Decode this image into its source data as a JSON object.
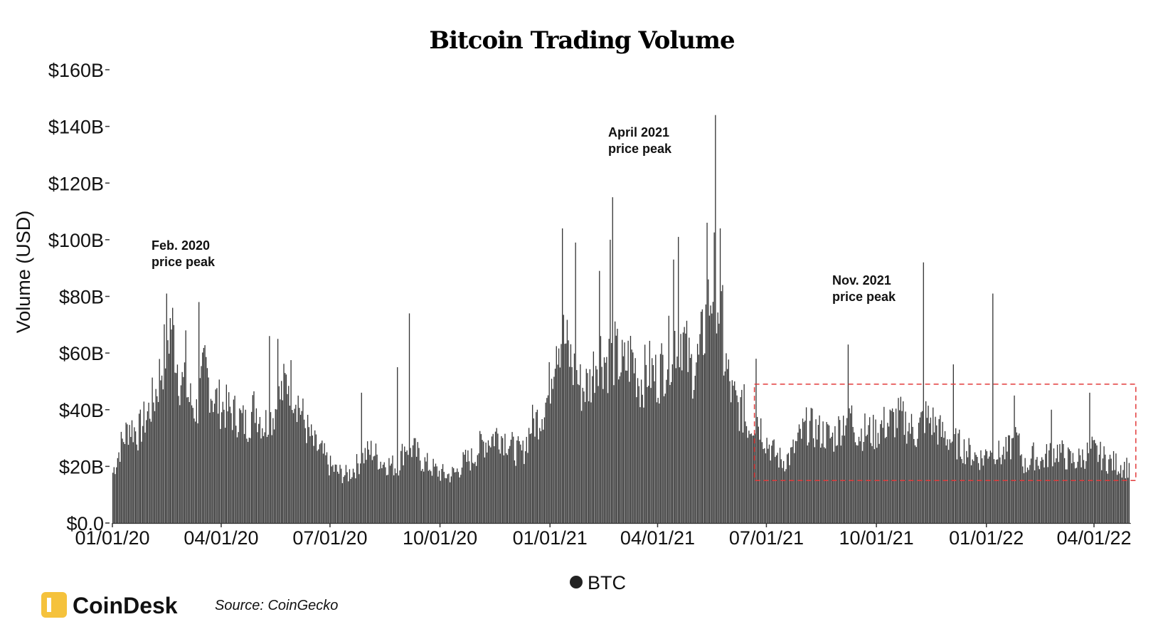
{
  "chart_data": {
    "type": "bar",
    "title": "Bitcoin Trading Volume",
    "ylabel": "Volume (USD)",
    "xlabel": "",
    "ylim": [
      0,
      160
    ],
    "yunit": "billion USD",
    "y_ticks": [
      {
        "value": 0,
        "label": "$0.0"
      },
      {
        "value": 20,
        "label": "$20B"
      },
      {
        "value": 40,
        "label": "$40B"
      },
      {
        "value": 60,
        "label": "$60B"
      },
      {
        "value": 80,
        "label": "$80B"
      },
      {
        "value": 100,
        "label": "$100B"
      },
      {
        "value": 120,
        "label": "$120B"
      },
      {
        "value": 140,
        "label": "$140B"
      },
      {
        "value": 160,
        "label": "$160B"
      }
    ],
    "x_range": [
      "2020-01-01",
      "2022-04-30"
    ],
    "x_ticks": [
      {
        "date": "2020-01-01",
        "label": "01/01/20"
      },
      {
        "date": "2020-04-01",
        "label": "04/01/20"
      },
      {
        "date": "2020-07-01",
        "label": "07/01/20"
      },
      {
        "date": "2020-10-01",
        "label": "10/01/20"
      },
      {
        "date": "2021-01-01",
        "label": "01/01/21"
      },
      {
        "date": "2021-04-01",
        "label": "04/01/21"
      },
      {
        "date": "2021-07-01",
        "label": "07/01/21"
      },
      {
        "date": "2021-10-01",
        "label": "10/01/21"
      },
      {
        "date": "2022-01-01",
        "label": "01/01/22"
      },
      {
        "date": "2022-04-01",
        "label": "04/01/22"
      }
    ],
    "series": [
      {
        "name": "BTC",
        "color": "#333333",
        "frequency": "daily (shown as weekly-resolution approximation)",
        "points": [
          [
            "2020-01-01",
            18
          ],
          [
            "2020-01-08",
            28
          ],
          [
            "2020-01-15",
            35
          ],
          [
            "2020-01-22",
            32
          ],
          [
            "2020-01-29",
            38
          ],
          [
            "2020-02-05",
            45
          ],
          [
            "2020-02-12",
            58
          ],
          [
            "2020-02-19",
            72
          ],
          [
            "2020-02-26",
            52
          ],
          [
            "2020-03-04",
            45
          ],
          [
            "2020-03-11",
            40
          ],
          [
            "2020-03-18",
            55
          ],
          [
            "2020-03-25",
            45
          ],
          [
            "2020-04-01",
            42
          ],
          [
            "2020-04-08",
            40
          ],
          [
            "2020-04-15",
            38
          ],
          [
            "2020-04-22",
            35
          ],
          [
            "2020-04-29",
            42
          ],
          [
            "2020-05-06",
            35
          ],
          [
            "2020-05-13",
            38
          ],
          [
            "2020-05-20",
            45
          ],
          [
            "2020-05-27",
            52
          ],
          [
            "2020-06-03",
            45
          ],
          [
            "2020-06-10",
            35
          ],
          [
            "2020-06-17",
            28
          ],
          [
            "2020-06-24",
            25
          ],
          [
            "2020-07-01",
            20
          ],
          [
            "2020-07-08",
            18
          ],
          [
            "2020-07-15",
            17
          ],
          [
            "2020-07-22",
            20
          ],
          [
            "2020-07-29",
            24
          ],
          [
            "2020-08-05",
            26
          ],
          [
            "2020-08-12",
            22
          ],
          [
            "2020-08-19",
            21
          ],
          [
            "2020-08-26",
            20
          ],
          [
            "2020-09-02",
            28
          ],
          [
            "2020-09-09",
            26
          ],
          [
            "2020-09-16",
            22
          ],
          [
            "2020-09-23",
            20
          ],
          [
            "2020-09-30",
            18
          ],
          [
            "2020-10-07",
            17
          ],
          [
            "2020-10-14",
            18
          ],
          [
            "2020-10-21",
            22
          ],
          [
            "2020-10-28",
            23
          ],
          [
            "2020-11-04",
            28
          ],
          [
            "2020-11-11",
            30
          ],
          [
            "2020-11-18",
            32
          ],
          [
            "2020-11-25",
            30
          ],
          [
            "2020-12-02",
            26
          ],
          [
            "2020-12-09",
            25
          ],
          [
            "2020-12-16",
            35
          ],
          [
            "2020-12-23",
            38
          ],
          [
            "2020-12-30",
            45
          ],
          [
            "2021-01-06",
            68
          ],
          [
            "2021-01-13",
            65
          ],
          [
            "2021-01-20",
            55
          ],
          [
            "2021-01-27",
            48
          ],
          [
            "2021-02-03",
            50
          ],
          [
            "2021-02-10",
            62
          ],
          [
            "2021-02-17",
            58
          ],
          [
            "2021-02-24",
            60
          ],
          [
            "2021-03-03",
            55
          ],
          [
            "2021-03-10",
            60
          ],
          [
            "2021-03-17",
            50
          ],
          [
            "2021-03-24",
            55
          ],
          [
            "2021-03-31",
            52
          ],
          [
            "2021-04-07",
            58
          ],
          [
            "2021-04-14",
            65
          ],
          [
            "2021-04-21",
            68
          ],
          [
            "2021-04-28",
            55
          ],
          [
            "2021-05-05",
            58
          ],
          [
            "2021-05-12",
            75
          ],
          [
            "2021-05-19",
            90
          ],
          [
            "2021-05-26",
            60
          ],
          [
            "2021-06-02",
            45
          ],
          [
            "2021-06-09",
            40
          ],
          [
            "2021-06-16",
            35
          ],
          [
            "2021-06-23",
            38
          ],
          [
            "2021-06-30",
            30
          ],
          [
            "2021-07-07",
            25
          ],
          [
            "2021-07-14",
            22
          ],
          [
            "2021-07-21",
            24
          ],
          [
            "2021-07-28",
            30
          ],
          [
            "2021-08-04",
            35
          ],
          [
            "2021-08-11",
            33
          ],
          [
            "2021-08-18",
            32
          ],
          [
            "2021-08-25",
            30
          ],
          [
            "2021-09-01",
            35
          ],
          [
            "2021-09-08",
            40
          ],
          [
            "2021-09-15",
            32
          ],
          [
            "2021-09-22",
            33
          ],
          [
            "2021-09-29",
            32
          ],
          [
            "2021-10-06",
            35
          ],
          [
            "2021-10-13",
            36
          ],
          [
            "2021-10-20",
            38
          ],
          [
            "2021-10-27",
            35
          ],
          [
            "2021-11-03",
            32
          ],
          [
            "2021-11-10",
            38
          ],
          [
            "2021-11-17",
            36
          ],
          [
            "2021-11-24",
            32
          ],
          [
            "2021-12-01",
            30
          ],
          [
            "2021-12-08",
            28
          ],
          [
            "2021-12-15",
            26
          ],
          [
            "2021-12-22",
            24
          ],
          [
            "2021-12-29",
            23
          ],
          [
            "2022-01-05",
            28
          ],
          [
            "2022-01-12",
            24
          ],
          [
            "2022-01-19",
            26
          ],
          [
            "2022-01-26",
            30
          ],
          [
            "2022-02-02",
            20
          ],
          [
            "2022-02-09",
            24
          ],
          [
            "2022-02-16",
            22
          ],
          [
            "2022-02-23",
            25
          ],
          [
            "2022-03-02",
            26
          ],
          [
            "2022-03-09",
            23
          ],
          [
            "2022-03-16",
            22
          ],
          [
            "2022-03-23",
            24
          ],
          [
            "2022-03-30",
            26
          ],
          [
            "2022-04-06",
            24
          ],
          [
            "2022-04-13",
            22
          ],
          [
            "2022-04-20",
            21
          ],
          [
            "2022-04-27",
            20
          ]
        ],
        "spikes": [
          [
            "2020-02-15",
            81
          ],
          [
            "2020-03-13",
            78
          ],
          [
            "2020-03-02",
            68
          ],
          [
            "2020-05-11",
            66
          ],
          [
            "2020-05-18",
            65
          ],
          [
            "2020-09-05",
            74
          ],
          [
            "2020-08-26",
            55
          ],
          [
            "2020-07-27",
            46
          ],
          [
            "2021-01-11",
            104
          ],
          [
            "2021-01-22",
            99
          ],
          [
            "2021-02-22",
            115
          ],
          [
            "2021-02-20",
            100
          ],
          [
            "2021-02-11",
            89
          ],
          [
            "2021-04-18",
            101
          ],
          [
            "2021-04-14",
            93
          ],
          [
            "2021-05-12",
            106
          ],
          [
            "2021-05-19",
            144
          ],
          [
            "2021-05-23",
            104
          ],
          [
            "2021-05-25",
            84
          ],
          [
            "2021-06-22",
            58
          ],
          [
            "2021-09-07",
            63
          ],
          [
            "2021-11-09",
            92
          ],
          [
            "2021-12-04",
            56
          ],
          [
            "2022-01-06",
            81
          ],
          [
            "2022-01-24",
            45
          ],
          [
            "2022-02-24",
            40
          ],
          [
            "2022-03-28",
            46
          ],
          [
            "2021-06-04",
            50
          ],
          [
            "2021-06-12",
            49
          ]
        ]
      }
    ],
    "legend": {
      "position": "bottom-center",
      "entries": [
        {
          "name": "BTC",
          "color": "#333333"
        }
      ]
    },
    "annotations": [
      {
        "lines": [
          "Feb. 2020",
          "price peak"
        ]
      },
      {
        "lines": [
          "April 2021",
          "price peak"
        ]
      },
      {
        "lines": [
          "Nov. 2021",
          "price peak"
        ]
      }
    ],
    "highlight_box": {
      "style": "dashed",
      "color": "#e23b3b",
      "x_start": "2021-06-21",
      "x_end": "2022-05-06",
      "y_low": 15,
      "y_high": 49
    }
  },
  "footer": {
    "brand": "CoinDesk",
    "source": "Source: CoinGecko",
    "brand_color": "#f5c23c"
  }
}
